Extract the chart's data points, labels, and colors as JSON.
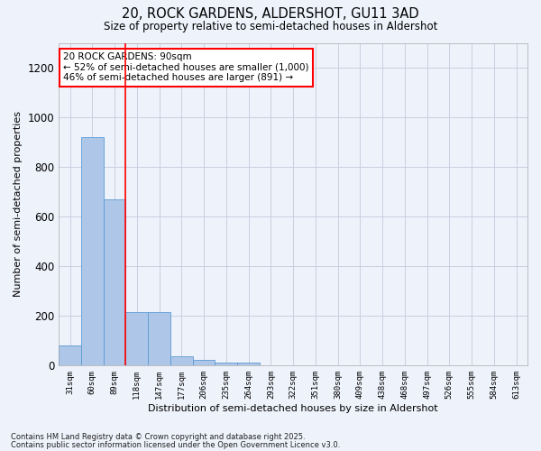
{
  "title1": "20, ROCK GARDENS, ALDERSHOT, GU11 3AD",
  "title2": "Size of property relative to semi-detached houses in Aldershot",
  "xlabel": "Distribution of semi-detached houses by size in Aldershot",
  "ylabel": "Number of semi-detached properties",
  "bar_color": "#aec6e8",
  "bar_edge_color": "#5b9bd5",
  "categories": [
    "31sqm",
    "60sqm",
    "89sqm",
    "118sqm",
    "147sqm",
    "177sqm",
    "206sqm",
    "235sqm",
    "264sqm",
    "293sqm",
    "322sqm",
    "351sqm",
    "380sqm",
    "409sqm",
    "438sqm",
    "468sqm",
    "497sqm",
    "526sqm",
    "555sqm",
    "584sqm",
    "613sqm"
  ],
  "values": [
    80,
    920,
    670,
    215,
    215,
    35,
    20,
    12,
    10,
    0,
    0,
    0,
    0,
    0,
    0,
    0,
    0,
    0,
    0,
    0,
    0
  ],
  "ylim": [
    0,
    1300
  ],
  "yticks": [
    0,
    200,
    400,
    600,
    800,
    1000,
    1200
  ],
  "red_line_x": 2.5,
  "annotation_title": "20 ROCK GARDENS: 90sqm",
  "annotation_line1": "← 52% of semi-detached houses are smaller (1,000)",
  "annotation_line2": "46% of semi-detached houses are larger (891) →",
  "footer1": "Contains HM Land Registry data © Crown copyright and database right 2025.",
  "footer2": "Contains public sector information licensed under the Open Government Licence v3.0.",
  "background_color": "#eef2fb",
  "grid_color": "#c8cfe0"
}
